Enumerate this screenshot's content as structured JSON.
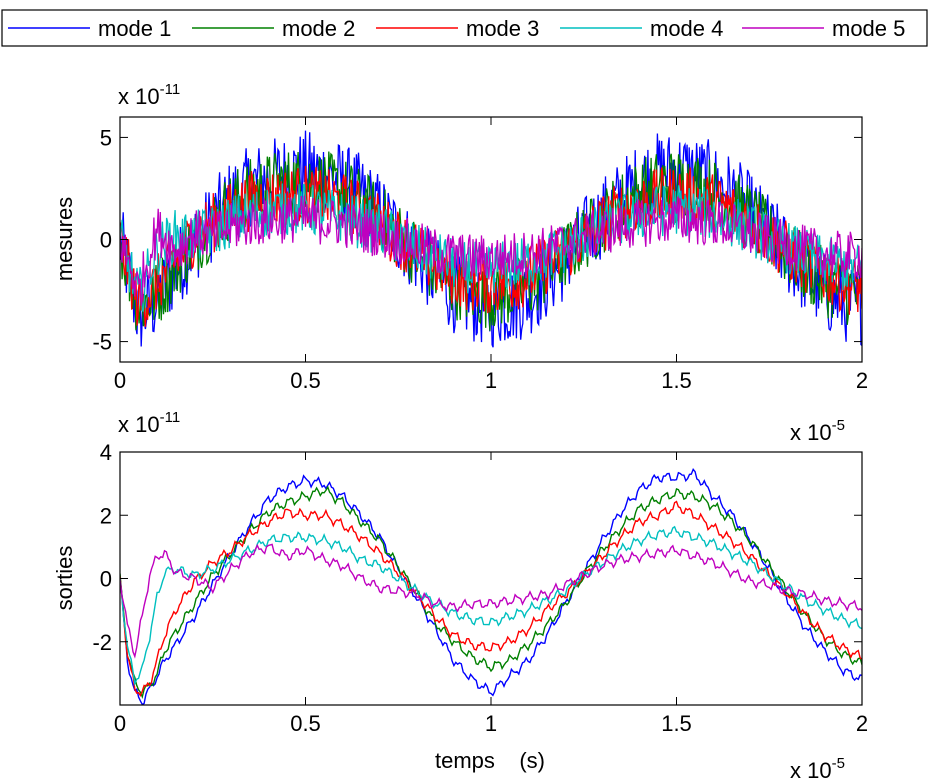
{
  "legend": {
    "entries": [
      {
        "label": "mode 1",
        "color": "#0000ff"
      },
      {
        "label": "mode 2",
        "color": "#008000"
      },
      {
        "label": "mode 3",
        "color": "#ff0000"
      },
      {
        "label": "mode 4",
        "color": "#00bfbf"
      },
      {
        "label": "mode 5",
        "color": "#bf00bf"
      }
    ]
  },
  "chart_data": [
    {
      "type": "line",
      "title": "",
      "xlabel": "",
      "ylabel": "mesures",
      "x_exponent_label": "x 10",
      "x_exponent": "-5",
      "y_exponent_label": "x 10",
      "y_exponent": "-11",
      "xlim": [
        0,
        2
      ],
      "ylim": [
        -6,
        6
      ],
      "xticks": [
        0,
        0.5,
        1,
        1.5,
        2
      ],
      "xtick_labels": [
        "0",
        "0.5",
        "1",
        "1.5",
        "2"
      ],
      "yticks": [
        -5,
        0,
        5
      ],
      "ytick_labels": [
        "-5",
        "0",
        "5"
      ],
      "x": [
        0,
        0.05,
        0.1,
        0.15,
        0.2,
        0.25,
        0.3,
        0.35,
        0.4,
        0.45,
        0.5,
        0.55,
        0.6,
        0.65,
        0.7,
        0.75,
        0.8,
        0.85,
        0.9,
        0.95,
        1.0,
        1.05,
        1.1,
        1.15,
        1.2,
        1.25,
        1.3,
        1.35,
        1.4,
        1.45,
        1.5,
        1.55,
        1.6,
        1.65,
        1.7,
        1.75,
        1.8,
        1.85,
        1.9,
        1.95,
        2.0
      ],
      "series": [
        {
          "name": "mode 1",
          "color": "#0000ff",
          "values": [
            0,
            -3.8,
            -3.0,
            -1.5,
            -0.2,
            0.9,
            2.0,
            2.6,
            3.0,
            3.2,
            3.4,
            3.2,
            2.8,
            2.2,
            1.3,
            0.3,
            -0.8,
            -1.8,
            -2.6,
            -3.1,
            -3.4,
            -3.2,
            -2.8,
            -2.0,
            -1.0,
            0.1,
            1.1,
            2.0,
            2.8,
            3.3,
            3.4,
            3.2,
            2.8,
            2.2,
            1.3,
            0.3,
            -0.8,
            -1.8,
            -2.6,
            -3.1,
            -3.2
          ],
          "noise": 2.0
        },
        {
          "name": "mode 2",
          "color": "#008000",
          "values": [
            0,
            -3.3,
            -2.7,
            -1.3,
            -0.1,
            0.8,
            1.7,
            2.3,
            2.6,
            2.8,
            2.9,
            2.7,
            2.4,
            1.8,
            1.1,
            0.2,
            -0.7,
            -1.6,
            -2.2,
            -2.6,
            -2.8,
            -2.6,
            -2.3,
            -1.6,
            -0.8,
            0.1,
            0.9,
            1.7,
            2.3,
            2.7,
            2.8,
            2.7,
            2.3,
            1.8,
            1.1,
            0.2,
            -0.7,
            -1.5,
            -2.1,
            -2.5,
            -2.7
          ],
          "noise": 1.7
        },
        {
          "name": "mode 3",
          "color": "#ff0000",
          "values": [
            0,
            -3.2,
            -2.2,
            -1.0,
            0.2,
            0.8,
            1.4,
            1.9,
            2.0,
            2.1,
            2.2,
            2.0,
            1.8,
            1.4,
            0.8,
            0.1,
            -0.6,
            -1.3,
            -1.8,
            -2.1,
            -2.2,
            -2.1,
            -1.8,
            -1.2,
            -0.6,
            0.1,
            0.8,
            1.4,
            1.8,
            2.0,
            2.2,
            2.0,
            1.8,
            1.4,
            0.8,
            0.1,
            -0.6,
            -1.2,
            -1.7,
            -2.1,
            -2.4
          ],
          "noise": 1.5
        },
        {
          "name": "mode 4",
          "color": "#00bfbf",
          "values": [
            0,
            -2.8,
            -0.5,
            0.2,
            0.1,
            0.4,
            0.9,
            1.2,
            1.4,
            1.5,
            1.5,
            1.3,
            1.1,
            0.8,
            0.5,
            0.0,
            -0.5,
            -0.9,
            -1.2,
            -1.4,
            -1.4,
            -1.3,
            -1.1,
            -0.8,
            -0.4,
            0.1,
            0.5,
            0.9,
            1.2,
            1.4,
            1.5,
            1.4,
            1.2,
            0.9,
            0.5,
            0.0,
            -0.4,
            -0.8,
            -1.1,
            -1.3,
            -1.4
          ],
          "noise": 1.3
        },
        {
          "name": "mode 5",
          "color": "#bf00bf",
          "values": [
            0,
            -2.5,
            0.5,
            -0.5,
            0.3,
            0.2,
            0.6,
            0.8,
            0.9,
            1.0,
            1.0,
            0.9,
            0.8,
            0.5,
            0.3,
            0.0,
            -0.3,
            -0.6,
            -0.8,
            -0.9,
            -0.9,
            -0.8,
            -0.7,
            -0.5,
            -0.2,
            0.1,
            0.4,
            0.6,
            0.8,
            0.9,
            1.0,
            0.9,
            0.8,
            0.6,
            0.3,
            0.0,
            -0.3,
            -0.5,
            -0.7,
            -0.8,
            -0.8
          ],
          "noise": 1.2
        }
      ]
    },
    {
      "type": "line",
      "title": "",
      "xlabel": "temps    (s)",
      "ylabel": "sorties",
      "x_exponent_label": "x 10",
      "x_exponent": "-5",
      "y_exponent_label": "x 10",
      "y_exponent": "-11",
      "xlim": [
        0,
        2
      ],
      "ylim": [
        -4,
        4
      ],
      "xticks": [
        0,
        0.5,
        1,
        1.5,
        2
      ],
      "xtick_labels": [
        "0",
        "0.5",
        "1",
        "1.5",
        "2"
      ],
      "yticks": [
        -2,
        0,
        2,
        4
      ],
      "ytick_labels": [
        "-2",
        "0",
        "2",
        "4"
      ],
      "x": [
        0,
        0.02,
        0.04,
        0.06,
        0.08,
        0.1,
        0.12,
        0.15,
        0.2,
        0.25,
        0.3,
        0.35,
        0.4,
        0.45,
        0.5,
        0.55,
        0.6,
        0.65,
        0.7,
        0.75,
        0.8,
        0.85,
        0.9,
        0.95,
        1.0,
        1.05,
        1.1,
        1.15,
        1.2,
        1.25,
        1.3,
        1.35,
        1.4,
        1.45,
        1.5,
        1.55,
        1.6,
        1.65,
        1.7,
        1.75,
        1.8,
        1.85,
        1.9,
        1.95,
        2.0
      ],
      "series": [
        {
          "name": "mode 1",
          "color": "#0000ff",
          "values": [
            0,
            -2.6,
            -3.6,
            -3.9,
            -3.5,
            -3.1,
            -2.6,
            -2.1,
            -1.2,
            -0.2,
            0.8,
            1.7,
            2.5,
            2.9,
            3.1,
            3.0,
            2.6,
            2.0,
            1.3,
            0.3,
            -0.6,
            -1.6,
            -2.6,
            -3.2,
            -3.6,
            -3.1,
            -2.6,
            -1.8,
            -0.8,
            0.2,
            1.2,
            2.1,
            2.8,
            3.2,
            3.2,
            3.3,
            2.6,
            2.0,
            1.2,
            0.3,
            -0.7,
            -1.6,
            -2.3,
            -2.9,
            -3.2
          ]
        },
        {
          "name": "mode 2",
          "color": "#008000",
          "values": [
            0,
            -2.3,
            -3.3,
            -3.6,
            -3.4,
            -3.0,
            -2.3,
            -1.7,
            -0.8,
            0.1,
            0.8,
            1.5,
            2.1,
            2.4,
            2.6,
            2.8,
            2.4,
            1.8,
            1.2,
            0.4,
            -0.5,
            -1.4,
            -2.0,
            -2.5,
            -2.8,
            -2.6,
            -2.1,
            -1.5,
            -0.8,
            0.1,
            0.9,
            1.6,
            2.2,
            2.5,
            2.7,
            2.6,
            2.3,
            1.8,
            1.2,
            0.4,
            -0.4,
            -1.2,
            -1.9,
            -2.4,
            -2.7
          ]
        },
        {
          "name": "mode 3",
          "color": "#ff0000",
          "values": [
            0,
            -2.4,
            -3.5,
            -3.6,
            -3.3,
            -2.6,
            -1.8,
            -1.0,
            -0.1,
            0.5,
            0.9,
            1.4,
            1.8,
            2.1,
            2.0,
            2.0,
            1.7,
            1.3,
            0.8,
            0.2,
            -0.5,
            -1.2,
            -1.8,
            -2.1,
            -2.2,
            -2.0,
            -1.6,
            -1.0,
            -0.5,
            0.1,
            0.7,
            1.3,
            1.8,
            2.0,
            2.3,
            2.0,
            1.6,
            1.2,
            0.7,
            0.1,
            -0.5,
            -1.2,
            -1.8,
            -2.2,
            -2.5
          ]
        },
        {
          "name": "mode 4",
          "color": "#00bfbf",
          "values": [
            0,
            -2.2,
            -3.2,
            -2.9,
            -1.8,
            -0.6,
            0.2,
            0.3,
            0.1,
            0.3,
            0.6,
            0.9,
            1.2,
            1.3,
            1.3,
            1.2,
            1.0,
            0.6,
            0.4,
            0.0,
            -0.4,
            -0.8,
            -1.1,
            -1.3,
            -1.4,
            -1.2,
            -1.0,
            -0.7,
            -0.4,
            0.1,
            0.5,
            0.9,
            1.2,
            1.4,
            1.5,
            1.3,
            1.1,
            0.8,
            0.5,
            0.1,
            -0.3,
            -0.7,
            -1.0,
            -1.3,
            -1.5
          ]
        },
        {
          "name": "mode 5",
          "color": "#bf00bf",
          "values": [
            0,
            -1.5,
            -2.4,
            -1.2,
            0.1,
            0.7,
            0.8,
            0.2,
            0.0,
            -0.3,
            0.3,
            0.8,
            1.0,
            0.7,
            0.9,
            0.6,
            0.4,
            0.0,
            -0.3,
            -0.4,
            -0.5,
            -0.8,
            -0.9,
            -0.8,
            -0.8,
            -0.7,
            -0.6,
            -0.5,
            -0.2,
            0.1,
            0.4,
            0.6,
            0.7,
            0.8,
            0.9,
            0.7,
            0.5,
            0.2,
            -0.1,
            -0.2,
            -0.4,
            -0.5,
            -0.7,
            -0.8,
            -0.9
          ]
        }
      ]
    }
  ]
}
